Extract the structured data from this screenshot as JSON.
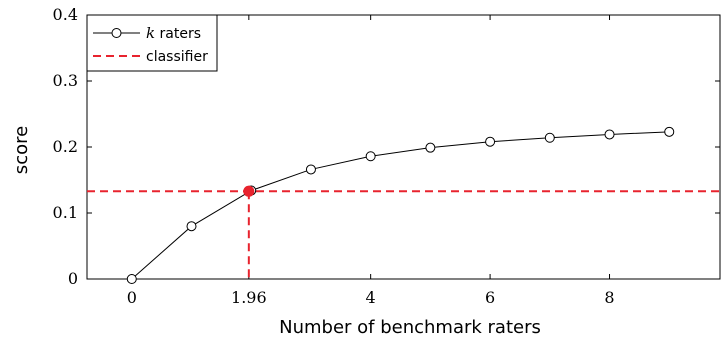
{
  "chart_data": {
    "type": "line",
    "xlabel": "Number of benchmark raters",
    "ylabel": "score",
    "xlim": [
      -0.75,
      9.85
    ],
    "ylim": [
      0,
      0.4
    ],
    "x_ticks": [
      "0",
      "1.96",
      "4",
      "6",
      "8"
    ],
    "x_tick_values": [
      0,
      1.96,
      4,
      6,
      8
    ],
    "y_ticks": [
      "0",
      "0.1",
      "0.2",
      "0.3",
      "0.4"
    ],
    "y_tick_values": [
      0,
      0.1,
      0.2,
      0.3,
      0.4
    ],
    "grid": false,
    "legend_position": "top-left",
    "series": [
      {
        "name_var": "k",
        "name_suffix": " raters",
        "color": "#000000",
        "marker": "open-circle",
        "x": [
          0,
          1,
          2,
          3,
          4,
          5,
          6,
          7,
          8,
          9
        ],
        "y": [
          0.0,
          0.08,
          0.134,
          0.166,
          0.186,
          0.199,
          0.208,
          0.214,
          0.219,
          0.223
        ]
      }
    ],
    "reference_lines": [
      {
        "name": "classifier",
        "color": "#e8232e",
        "style": "dashed",
        "y": 0.133,
        "intersection_x": 1.96
      }
    ]
  }
}
